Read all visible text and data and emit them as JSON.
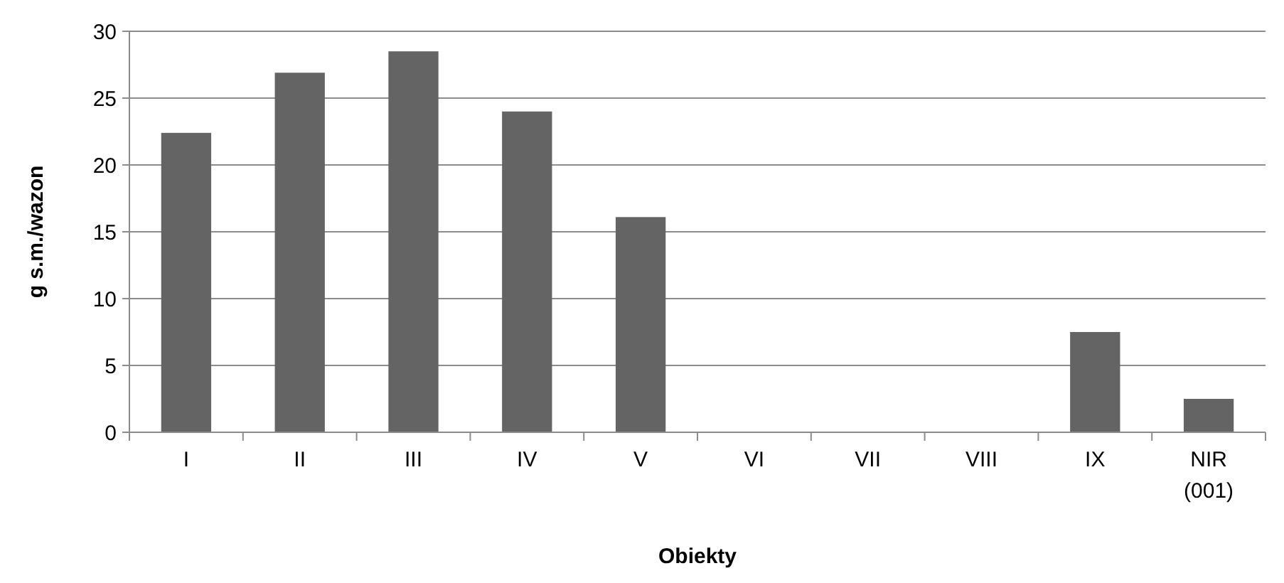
{
  "chart_data": {
    "type": "bar",
    "xlabel": "Obiekty",
    "ylabel": "g s.m./wazon",
    "categories": [
      "I",
      "II",
      "III",
      "IV",
      "V",
      "VI",
      "VII",
      "VIII",
      "IX",
      "NIR (001)"
    ],
    "values": [
      22.4,
      26.9,
      28.5,
      24.0,
      16.1,
      0,
      0,
      0,
      7.5,
      2.5
    ],
    "color": "#646464",
    "ylim": [
      0,
      30
    ],
    "yticks": [
      0,
      5,
      10,
      15,
      20,
      25,
      30
    ],
    "grid": "y"
  }
}
